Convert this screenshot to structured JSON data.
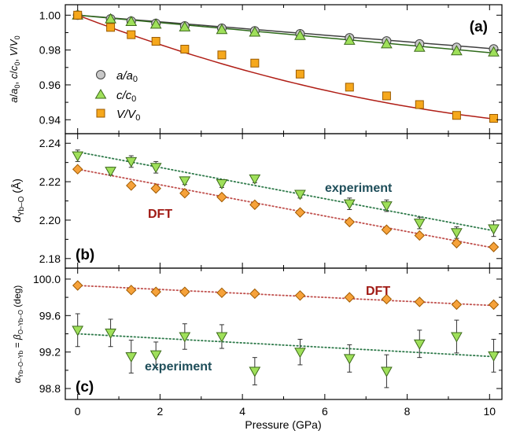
{
  "colors": {
    "frame": "#000000",
    "fit_red": "#b01e16",
    "dot_red": "#c0504d",
    "dot_green": "#2e7a4a",
    "dark_teal": "#1f4e5a",
    "dft_text": "#a01a14",
    "square_fill": "#f6a81c",
    "square_edge": "#9a5a00",
    "diamond_fill": "#f6a23a",
    "diamond_edge": "#a05a00",
    "triangle_fill": "#9fe05a",
    "triangle_edge": "#3c6a1a",
    "circle_fill": "#c8c8c8",
    "circle_edge": "#404040"
  },
  "chart_data": [
    {
      "panel": "(a)",
      "type": "scatter",
      "ylabel": "a/a0, c/c0, V/V0",
      "xlim": [
        -0.3,
        10.3
      ],
      "ylim": [
        0.932,
        1.006
      ],
      "yticks": [
        "1.00",
        "0.98",
        "0.96",
        "0.94"
      ],
      "ytick_values": [
        1.0,
        0.98,
        0.96,
        0.94
      ],
      "legend_position": "left",
      "series": [
        {
          "name": "a/a0",
          "marker": "circle",
          "fit": "solid",
          "fit_color": "#404040",
          "x": [
            0,
            0.8,
            1.3,
            1.9,
            2.6,
            3.5,
            4.3,
            5.4,
            6.6,
            7.5,
            8.3,
            9.2,
            10.1
          ],
          "y": [
            1.0,
            0.9979,
            0.9966,
            0.9953,
            0.9938,
            0.9925,
            0.991,
            0.9893,
            0.987,
            0.9852,
            0.9835,
            0.9815,
            0.9806
          ],
          "fit_y0": 1.0,
          "fit_y1": 0.9807
        },
        {
          "name": "c/c0",
          "marker": "triangle-up",
          "fit": "solid",
          "fit_color": "#2e6a1a",
          "x": [
            0,
            0.8,
            1.3,
            1.9,
            2.6,
            3.5,
            4.3,
            5.4,
            6.6,
            7.5,
            8.3,
            9.2,
            10.1
          ],
          "y": [
            1.0,
            0.9978,
            0.9963,
            0.9948,
            0.9932,
            0.9917,
            0.9902,
            0.9883,
            0.9855,
            0.9835,
            0.9815,
            0.9795,
            0.9788
          ],
          "fit_y0": 1.0,
          "fit_y1": 0.9783
        },
        {
          "name": "V/V0",
          "marker": "square",
          "fit": "solid-curve",
          "fit_color": "#b01e16",
          "x": [
            0,
            0.8,
            1.3,
            1.9,
            2.6,
            3.5,
            4.3,
            5.4,
            6.6,
            7.5,
            8.3,
            9.2,
            10.1
          ],
          "y": [
            1.0,
            0.993,
            0.9888,
            0.985,
            0.9805,
            0.9772,
            0.9725,
            0.9662,
            0.9587,
            0.9537,
            0.9487,
            0.9425,
            0.9408
          ],
          "fit_y0": 1.0,
          "fit_y1": 0.9405,
          "fit_curvature": 0.008
        }
      ]
    },
    {
      "panel": "(b)",
      "type": "scatter",
      "ylabel": "dYb–O (Å)",
      "xlim": [
        -0.3,
        10.3
      ],
      "ylim": [
        2.175,
        2.245
      ],
      "yticks": [
        "2.24",
        "2.22",
        "2.20",
        "2.18"
      ],
      "ytick_values": [
        2.24,
        2.22,
        2.2,
        2.18
      ],
      "annotations": [
        "experiment",
        "DFT"
      ],
      "series": [
        {
          "name": "experiment",
          "marker": "triangle-down",
          "fit": "dotted",
          "fit_color": "#2e7a4a",
          "x": [
            0,
            0.8,
            1.3,
            1.9,
            2.6,
            3.5,
            4.3,
            5.4,
            6.6,
            7.5,
            8.3,
            9.2,
            10.1
          ],
          "y": [
            2.2335,
            2.2255,
            2.2305,
            2.2275,
            2.2205,
            2.219,
            2.2215,
            2.2135,
            2.2085,
            2.2075,
            2.1985,
            2.1935,
            2.1955
          ],
          "err": [
            0.003,
            0.002,
            0.003,
            0.003,
            0.002,
            0.002,
            0.002,
            0.002,
            0.003,
            0.003,
            0.003,
            0.003,
            0.004
          ],
          "fit_y0": 2.2355,
          "fit_y1": 2.1945
        },
        {
          "name": "DFT",
          "marker": "diamond",
          "fit": "dotted",
          "fit_color": "#c0504d",
          "x": [
            0,
            1.3,
            1.9,
            2.6,
            3.5,
            4.3,
            5.4,
            6.6,
            7.5,
            8.3,
            9.2,
            10.1
          ],
          "y": [
            2.2265,
            2.218,
            2.2165,
            2.214,
            2.212,
            2.208,
            2.204,
            2.199,
            2.195,
            2.192,
            2.188,
            2.186
          ],
          "fit_y0": 2.2265,
          "fit_y1": 2.1855
        }
      ]
    },
    {
      "panel": "(c)",
      "type": "scatter",
      "ylabel": "αYb–O–Yb = βO–Yb–O (deg)",
      "xlabel": "Pressure (GPa)",
      "xlim": [
        -0.3,
        10.3
      ],
      "ylim": [
        98.68,
        100.12
      ],
      "xticks": [
        "0",
        "2",
        "4",
        "6",
        "8",
        "10"
      ],
      "xtick_values": [
        0,
        2,
        4,
        6,
        8,
        10
      ],
      "yticks": [
        "100.0",
        "99.6",
        "99.2",
        "98.8"
      ],
      "ytick_values": [
        100.0,
        99.6,
        99.2,
        98.8
      ],
      "annotations": [
        "DFT",
        "experiment"
      ],
      "series": [
        {
          "name": "DFT",
          "marker": "diamond",
          "fit": "dotted",
          "fit_color": "#c0504d",
          "x": [
            0,
            1.3,
            1.9,
            2.6,
            3.5,
            4.3,
            5.4,
            6.6,
            7.5,
            8.3,
            9.2,
            10.1
          ],
          "y": [
            99.93,
            99.88,
            99.86,
            99.86,
            99.85,
            99.84,
            99.82,
            99.8,
            99.78,
            99.75,
            99.72,
            99.72
          ],
          "fit_y0": 99.93,
          "fit_y1": 99.71
        },
        {
          "name": "experiment",
          "marker": "triangle-down",
          "fit": "dotted",
          "fit_color": "#2e7a4a",
          "x": [
            0,
            0.8,
            1.3,
            1.9,
            2.6,
            3.5,
            4.3,
            5.4,
            6.6,
            7.5,
            8.3,
            9.2,
            10.1
          ],
          "y": [
            99.44,
            99.41,
            99.15,
            99.17,
            99.37,
            99.37,
            98.99,
            99.2,
            99.13,
            98.99,
            99.29,
            99.37,
            99.16
          ],
          "err": [
            0.18,
            0.15,
            0.18,
            0.14,
            0.14,
            0.13,
            0.15,
            0.14,
            0.15,
            0.18,
            0.15,
            0.18,
            0.18
          ],
          "fit_y0": 99.4,
          "fit_y1": 99.15
        }
      ]
    }
  ]
}
